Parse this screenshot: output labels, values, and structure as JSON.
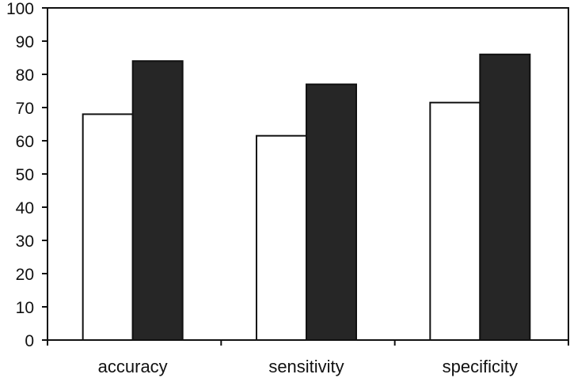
{
  "chart_data": {
    "type": "bar",
    "categories": [
      "accuracy",
      "sensitivity",
      "specificity"
    ],
    "series": [
      {
        "values": [
          68,
          61.5,
          71.5
        ],
        "color": "#ffffff"
      },
      {
        "values": [
          84,
          77,
          86
        ],
        "color": "#262626"
      }
    ],
    "ylim": [
      0,
      100
    ],
    "yticks": [
      0,
      10,
      20,
      30,
      40,
      50,
      60,
      70,
      80,
      90,
      100
    ],
    "grid": false,
    "legend": "none"
  }
}
